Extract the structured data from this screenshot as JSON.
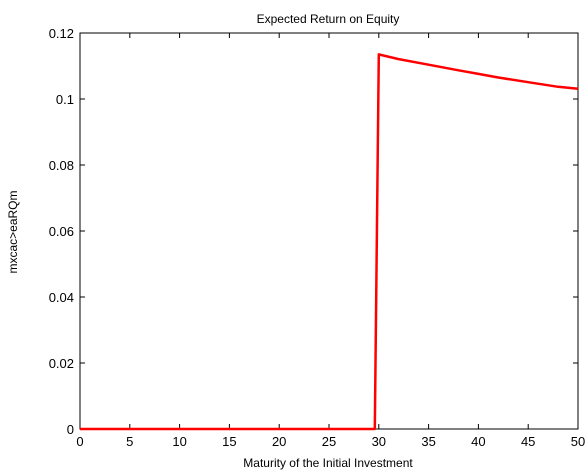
{
  "chart_data": {
    "type": "line",
    "title": "Expected  Return on Equity",
    "xlabel": "Maturity of the Initial Investment",
    "ylabel": "mxcac>eaRQm",
    "xlim": [
      0,
      50
    ],
    "ylim": [
      0,
      0.12
    ],
    "x_ticks": [
      "0",
      "5",
      "10",
      "15",
      "20",
      "25",
      "30",
      "35",
      "40",
      "45",
      "50"
    ],
    "y_ticks": [
      "0",
      "0.02",
      "0.04",
      "0.06",
      "0.08",
      "0.1",
      "0.12"
    ],
    "grid": false,
    "series": [
      {
        "color": "#ff0000",
        "x": [
          0,
          5,
          10,
          15,
          20,
          25,
          29.6,
          30,
          32,
          35,
          38,
          40,
          42,
          45,
          48,
          50
        ],
        "y": [
          0,
          0,
          0,
          0,
          0,
          0,
          0,
          0.1135,
          0.1121,
          0.1104,
          0.1087,
          0.1076,
          0.1065,
          0.1051,
          0.1037,
          0.1031
        ]
      }
    ]
  }
}
